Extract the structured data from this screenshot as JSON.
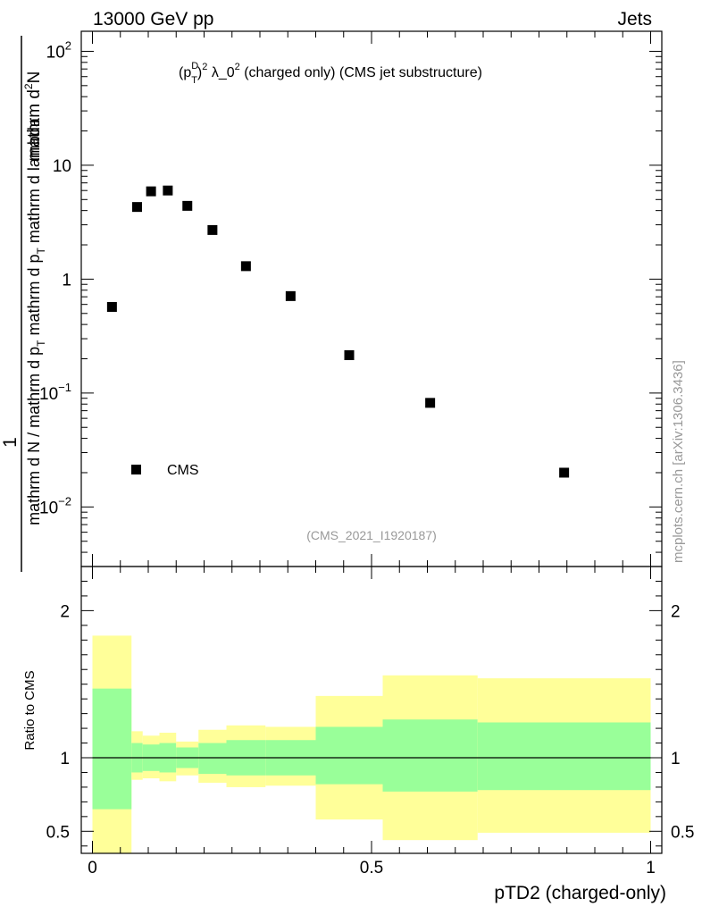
{
  "header": {
    "left": "13000 GeV pp",
    "right": "Jets"
  },
  "side_label": "mcplots.cern.ch [arXiv:1306.3436]",
  "analysis_id": "(CMS_2021_I1920187)",
  "colors": {
    "green_band": "#99ff99",
    "yellow_band": "#ffff99",
    "marker": "#000000",
    "axis": "#000000",
    "watermark": "#999999"
  },
  "chart_data": [
    {
      "type": "scatter",
      "title": {
        "p": "(p",
        "sup_d": "D",
        "sub_t": "T",
        "close": ")",
        "sup_2": "2",
        "lambda": " λ_0",
        "sup_2b": "2",
        "rest": " (charged only) (CMS jet substructure)"
      },
      "ylabel": {
        "numerator": "1",
        "denominator": "mathrm d N / mathrm d p",
        "denominator_sub": "T",
        "denominator_rest": " mathrm d p",
        "denominator_sub2": "T",
        "denominator_rest2": " mathrm d lambda",
        "numerator_top": "mathrm d",
        "numerator_top_sup": "2",
        "numerator_top_rest": "N"
      },
      "yscale": "log",
      "ylim": [
        0.003,
        150
      ],
      "xlim": [
        -0.02,
        1.02
      ],
      "y_ticks": [
        {
          "value": 0.01,
          "base": "10",
          "exp": "−2"
        },
        {
          "value": 0.1,
          "base": "10",
          "exp": "−1"
        },
        {
          "value": 1,
          "base": "1",
          "exp": ""
        },
        {
          "value": 10,
          "base": "10",
          "exp": ""
        },
        {
          "value": 100,
          "base": "10",
          "exp": "2"
        }
      ],
      "legend": {
        "label": "CMS",
        "position": "bottom-left"
      },
      "series": [
        {
          "name": "CMS",
          "x": [
            0.035,
            0.08,
            0.105,
            0.135,
            0.17,
            0.215,
            0.275,
            0.355,
            0.46,
            0.605,
            0.845
          ],
          "y": [
            0.57,
            4.3,
            5.9,
            6.0,
            4.4,
            2.7,
            1.3,
            0.71,
            0.215,
            0.082,
            0.02
          ]
        }
      ]
    },
    {
      "type": "area",
      "ylabel": "Ratio to CMS",
      "xlabel": "pTD2 (charged-only)",
      "ylim": [
        0.35,
        2.3
      ],
      "xlim": [
        -0.02,
        1.02
      ],
      "x_ticks": [
        {
          "value": 0,
          "label": "0"
        },
        {
          "value": 0.5,
          "label": "0.5"
        },
        {
          "value": 1,
          "label": "1"
        }
      ],
      "y_ticks": [
        {
          "value": 0.5,
          "label": "0.5"
        },
        {
          "value": 1,
          "label": "1"
        },
        {
          "value": 2,
          "label": "2"
        }
      ],
      "reference_line": 1,
      "bins": [
        {
          "x0": 0.0,
          "x1": 0.07,
          "g_lo": 0.65,
          "g_hi": 1.47,
          "y_lo": 0.0,
          "y_hi": 1.83
        },
        {
          "x0": 0.07,
          "x1": 0.09,
          "g_lo": 0.9,
          "g_hi": 1.1,
          "y_lo": 0.85,
          "y_hi": 1.18
        },
        {
          "x0": 0.09,
          "x1": 0.12,
          "g_lo": 0.91,
          "g_hi": 1.09,
          "y_lo": 0.86,
          "y_hi": 1.15
        },
        {
          "x0": 0.12,
          "x1": 0.15,
          "g_lo": 0.9,
          "g_hi": 1.1,
          "y_lo": 0.84,
          "y_hi": 1.17
        },
        {
          "x0": 0.15,
          "x1": 0.19,
          "g_lo": 0.93,
          "g_hi": 1.07,
          "y_lo": 0.88,
          "y_hi": 1.11
        },
        {
          "x0": 0.19,
          "x1": 0.24,
          "g_lo": 0.89,
          "g_hi": 1.1,
          "y_lo": 0.83,
          "y_hi": 1.19
        },
        {
          "x0": 0.24,
          "x1": 0.31,
          "g_lo": 0.88,
          "g_hi": 1.12,
          "y_lo": 0.8,
          "y_hi": 1.22
        },
        {
          "x0": 0.31,
          "x1": 0.4,
          "g_lo": 0.88,
          "g_hi": 1.12,
          "y_lo": 0.81,
          "y_hi": 1.21
        },
        {
          "x0": 0.4,
          "x1": 0.52,
          "g_lo": 0.82,
          "g_hi": 1.21,
          "y_lo": 0.58,
          "y_hi": 1.42
        },
        {
          "x0": 0.52,
          "x1": 0.69,
          "g_lo": 0.77,
          "g_hi": 1.26,
          "y_lo": 0.44,
          "y_hi": 1.56
        },
        {
          "x0": 0.69,
          "x1": 1.0,
          "g_lo": 0.78,
          "g_hi": 1.24,
          "y_lo": 0.49,
          "y_hi": 1.54
        }
      ]
    }
  ]
}
